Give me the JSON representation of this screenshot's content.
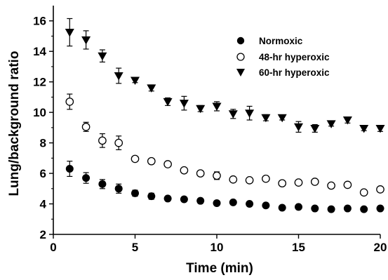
{
  "chart_data": {
    "type": "scatter",
    "xlabel": "Time (min)",
    "ylabel": "Lung/background ratio",
    "xlim": [
      0,
      20
    ],
    "ylim": [
      2,
      17
    ],
    "xticks": [
      0,
      5,
      10,
      15,
      20
    ],
    "yticks": [
      2,
      4,
      6,
      8,
      10,
      12,
      14,
      16
    ],
    "grid": false,
    "legend_position": "top-right",
    "x": [
      1,
      2,
      3,
      4,
      5,
      6,
      7,
      8,
      9,
      10,
      11,
      12,
      13,
      14,
      15,
      16,
      17,
      18,
      19,
      20
    ],
    "series": [
      {
        "name": "Normoxic",
        "marker": "filled-circle",
        "values": [
          6.3,
          5.7,
          5.3,
          5.0,
          4.7,
          4.5,
          4.35,
          4.3,
          4.2,
          4.05,
          4.1,
          4.0,
          3.9,
          3.75,
          3.8,
          3.7,
          3.65,
          3.7,
          3.65,
          3.7
        ],
        "errors": [
          0.5,
          0.35,
          0.3,
          0.3,
          0.2,
          0.2,
          0.15,
          0.15,
          0.15,
          0.1,
          0.15,
          0.15,
          0.1,
          0.1,
          0.1,
          0.1,
          0.15,
          0.15,
          0.1,
          0.1
        ]
      },
      {
        "name": "48-hr hyperoxic",
        "marker": "open-circle",
        "values": [
          10.7,
          9.05,
          8.15,
          8.0,
          6.95,
          6.8,
          6.6,
          6.2,
          6.0,
          5.85,
          5.6,
          5.55,
          5.65,
          5.35,
          5.4,
          5.45,
          5.2,
          5.25,
          4.75,
          4.95
        ],
        "errors": [
          0.5,
          0.3,
          0.45,
          0.45,
          0.15,
          0.15,
          0.15,
          0.15,
          0.15,
          0.25,
          0.15,
          0.15,
          0.1,
          0.15,
          0.1,
          0.1,
          0.15,
          0.1,
          0.15,
          0.15
        ]
      },
      {
        "name": "60-hr hyperoxic",
        "marker": "filled-triangle-down",
        "values": [
          15.25,
          14.75,
          13.7,
          12.4,
          12.1,
          11.6,
          10.7,
          10.6,
          10.25,
          10.4,
          9.9,
          9.95,
          9.65,
          9.65,
          9.05,
          8.95,
          9.25,
          9.5,
          8.95,
          8.95
        ],
        "errors": [
          0.9,
          0.6,
          0.4,
          0.5,
          0.15,
          0.2,
          0.25,
          0.45,
          0.2,
          0.3,
          0.3,
          0.45,
          0.2,
          0.15,
          0.35,
          0.25,
          0.15,
          0.2,
          0.15,
          0.2
        ]
      }
    ]
  }
}
